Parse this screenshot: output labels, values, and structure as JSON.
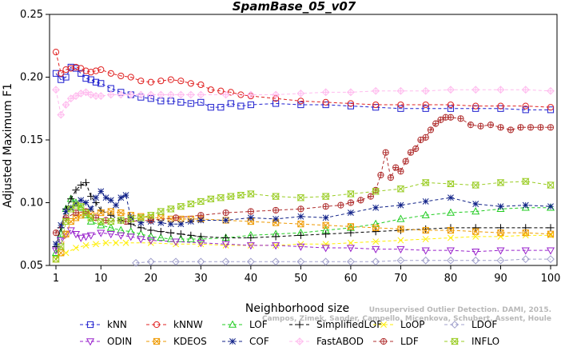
{
  "chart_data": {
    "type": "line",
    "title": "SpamBase_05_v07",
    "xlabel": "Neighborhood size",
    "ylabel": "Adjusted Maximum F1",
    "xlim": [
      1,
      100
    ],
    "ylim": [
      0.05,
      0.25
    ],
    "xticks": [
      "1",
      "10",
      "20",
      "30",
      "40",
      "50",
      "60",
      "70",
      "80",
      "90",
      "100"
    ],
    "yticks": [
      "0.05",
      "0.10",
      "0.15",
      "0.20",
      "0.25"
    ],
    "legend_position": "bottom",
    "credit_lines": [
      "Campos, Zimek, Sander, Campello, Micenkova, Schubert, Assent, Houle",
      "Unsupervised Outlier Detection. DAMI, 2015."
    ],
    "series": [
      {
        "name": "kNN",
        "color": "#1f1fcf",
        "marker": "square",
        "x": [
          1,
          2,
          3,
          4,
          5,
          6,
          7,
          8,
          9,
          10,
          12,
          14,
          16,
          18,
          20,
          22,
          24,
          26,
          28,
          30,
          32,
          34,
          36,
          38,
          40,
          45,
          50,
          55,
          60,
          65,
          70,
          75,
          80,
          85,
          90,
          95,
          100
        ],
        "y": [
          0.203,
          0.198,
          0.2,
          0.208,
          0.207,
          0.203,
          0.199,
          0.198,
          0.196,
          0.195,
          0.191,
          0.188,
          0.186,
          0.184,
          0.183,
          0.181,
          0.181,
          0.18,
          0.179,
          0.18,
          0.176,
          0.176,
          0.179,
          0.177,
          0.178,
          0.179,
          0.178,
          0.178,
          0.177,
          0.176,
          0.175,
          0.175,
          0.175,
          0.175,
          0.175,
          0.174,
          0.174
        ]
      },
      {
        "name": "kNNW",
        "color": "#e02020",
        "marker": "circle",
        "x": [
          1,
          2,
          3,
          4,
          5,
          6,
          7,
          8,
          9,
          10,
          12,
          14,
          16,
          18,
          20,
          22,
          24,
          26,
          28,
          30,
          32,
          34,
          36,
          38,
          40,
          45,
          50,
          55,
          60,
          65,
          70,
          75,
          80,
          85,
          90,
          95,
          100
        ],
        "y": [
          0.22,
          0.203,
          0.206,
          0.207,
          0.208,
          0.207,
          0.205,
          0.204,
          0.205,
          0.206,
          0.203,
          0.201,
          0.2,
          0.197,
          0.196,
          0.197,
          0.198,
          0.197,
          0.195,
          0.194,
          0.19,
          0.189,
          0.188,
          0.186,
          0.185,
          0.183,
          0.181,
          0.18,
          0.179,
          0.178,
          0.178,
          0.178,
          0.178,
          0.177,
          0.177,
          0.177,
          0.176
        ]
      },
      {
        "name": "LOF",
        "color": "#22cc22",
        "marker": "triangle-up",
        "x": [
          1,
          2,
          3,
          4,
          5,
          6,
          7,
          8,
          10,
          12,
          14,
          16,
          18,
          20,
          22,
          24,
          26,
          28,
          30,
          35,
          40,
          45,
          50,
          55,
          60,
          65,
          70,
          75,
          80,
          85,
          90,
          95,
          100
        ],
        "y": [
          0.06,
          0.075,
          0.095,
          0.103,
          0.1,
          0.096,
          0.09,
          0.085,
          0.082,
          0.08,
          0.078,
          0.077,
          0.075,
          0.073,
          0.072,
          0.071,
          0.071,
          0.071,
          0.071,
          0.072,
          0.074,
          0.075,
          0.076,
          0.078,
          0.08,
          0.083,
          0.087,
          0.09,
          0.092,
          0.093,
          0.095,
          0.096,
          0.096
        ]
      },
      {
        "name": "SimplifiedLOF",
        "color": "#000000",
        "marker": "plus",
        "x": [
          1,
          2,
          3,
          4,
          5,
          6,
          7,
          8,
          9,
          10,
          12,
          14,
          16,
          18,
          20,
          22,
          24,
          26,
          28,
          30,
          35,
          40,
          45,
          50,
          55,
          60,
          65,
          70,
          75,
          80,
          85,
          90,
          95,
          100
        ],
        "y": [
          0.065,
          0.08,
          0.095,
          0.103,
          0.11,
          0.114,
          0.116,
          0.105,
          0.1,
          0.094,
          0.09,
          0.086,
          0.083,
          0.08,
          0.078,
          0.077,
          0.076,
          0.075,
          0.074,
          0.073,
          0.072,
          0.072,
          0.073,
          0.074,
          0.075,
          0.076,
          0.077,
          0.078,
          0.079,
          0.08,
          0.08,
          0.08,
          0.08,
          0.08
        ]
      },
      {
        "name": "LoOP",
        "color": "#ffee00",
        "marker": "x",
        "x": [
          1,
          3,
          5,
          7,
          9,
          11,
          13,
          15,
          20,
          25,
          30,
          35,
          40,
          45,
          50,
          55,
          60,
          65,
          70,
          75,
          80,
          85,
          90,
          95,
          100
        ],
        "y": [
          0.055,
          0.06,
          0.064,
          0.066,
          0.067,
          0.068,
          0.068,
          0.068,
          0.068,
          0.067,
          0.067,
          0.066,
          0.066,
          0.066,
          0.067,
          0.067,
          0.068,
          0.069,
          0.07,
          0.071,
          0.072,
          0.073,
          0.073,
          0.074,
          0.074
        ]
      },
      {
        "name": "LDOF",
        "color": "#a0a0cc",
        "marker": "diamond",
        "x": [
          17,
          20,
          25,
          30,
          35,
          40,
          45,
          50,
          55,
          60,
          65,
          70,
          75,
          80,
          85,
          90,
          95,
          100
        ],
        "y": [
          0.052,
          0.053,
          0.053,
          0.053,
          0.053,
          0.053,
          0.053,
          0.053,
          0.053,
          0.053,
          0.053,
          0.054,
          0.054,
          0.054,
          0.054,
          0.054,
          0.055,
          0.055
        ]
      },
      {
        "name": "ODIN",
        "color": "#9922cc",
        "marker": "triangle-down",
        "x": [
          1,
          2,
          3,
          4,
          5,
          6,
          7,
          8,
          10,
          12,
          14,
          16,
          18,
          20,
          25,
          30,
          35,
          40,
          45,
          50,
          55,
          60,
          65,
          70,
          75,
          80,
          85,
          90,
          95,
          100
        ],
        "y": [
          0.062,
          0.07,
          0.075,
          0.078,
          0.075,
          0.072,
          0.073,
          0.074,
          0.076,
          0.075,
          0.074,
          0.073,
          0.071,
          0.07,
          0.069,
          0.068,
          0.067,
          0.066,
          0.066,
          0.065,
          0.064,
          0.064,
          0.063,
          0.063,
          0.062,
          0.062,
          0.061,
          0.062,
          0.062,
          0.062
        ]
      },
      {
        "name": "KDEOS",
        "color": "#ee9900",
        "marker": "square-x",
        "x": [
          1,
          2,
          3,
          4,
          5,
          6,
          7,
          8,
          10,
          12,
          14,
          16,
          18,
          20,
          22,
          24,
          26,
          28,
          30,
          35,
          40,
          45,
          50,
          55,
          60,
          65,
          70,
          75,
          80,
          85,
          90,
          95,
          100
        ],
        "y": [
          0.055,
          0.06,
          0.075,
          0.085,
          0.088,
          0.09,
          0.092,
          0.091,
          0.092,
          0.093,
          0.092,
          0.09,
          0.089,
          0.088,
          0.088,
          0.087,
          0.087,
          0.087,
          0.087,
          0.086,
          0.085,
          0.084,
          0.083,
          0.082,
          0.081,
          0.08,
          0.079,
          0.078,
          0.078,
          0.077,
          0.076,
          0.076,
          0.075
        ]
      },
      {
        "name": "COF",
        "color": "#112288",
        "marker": "asterisk",
        "x": [
          1,
          2,
          3,
          4,
          5,
          6,
          7,
          8,
          9,
          10,
          11,
          12,
          13,
          14,
          15,
          16,
          18,
          20,
          22,
          24,
          26,
          28,
          30,
          35,
          40,
          45,
          50,
          55,
          60,
          65,
          70,
          75,
          80,
          85,
          90,
          95,
          100
        ],
        "y": [
          0.067,
          0.082,
          0.093,
          0.096,
          0.099,
          0.102,
          0.1,
          0.095,
          0.104,
          0.109,
          0.104,
          0.102,
          0.098,
          0.104,
          0.106,
          0.088,
          0.084,
          0.085,
          0.084,
          0.083,
          0.083,
          0.085,
          0.086,
          0.086,
          0.088,
          0.087,
          0.089,
          0.088,
          0.092,
          0.096,
          0.098,
          0.101,
          0.104,
          0.099,
          0.097,
          0.098,
          0.097
        ]
      },
      {
        "name": "FastABOD",
        "color": "#ffbbee",
        "marker": "diamond-plus",
        "x": [
          1,
          2,
          3,
          4,
          5,
          6,
          7,
          8,
          9,
          10,
          12,
          14,
          16,
          18,
          20,
          22,
          24,
          26,
          28,
          30,
          35,
          40,
          45,
          50,
          55,
          60,
          65,
          70,
          75,
          80,
          85,
          90,
          95,
          100
        ],
        "y": [
          0.19,
          0.17,
          0.178,
          0.183,
          0.185,
          0.187,
          0.188,
          0.186,
          0.185,
          0.185,
          0.186,
          0.186,
          0.186,
          0.186,
          0.186,
          0.186,
          0.186,
          0.186,
          0.186,
          0.186,
          0.186,
          0.186,
          0.186,
          0.187,
          0.188,
          0.188,
          0.189,
          0.189,
          0.189,
          0.19,
          0.19,
          0.19,
          0.19,
          0.189
        ]
      },
      {
        "name": "LDF",
        "color": "#b03030",
        "marker": "circle-plus",
        "x": [
          1,
          3,
          5,
          7,
          9,
          11,
          15,
          20,
          25,
          30,
          35,
          40,
          45,
          50,
          55,
          58,
          60,
          62,
          64,
          65,
          66,
          67,
          68,
          69,
          70,
          71,
          72,
          73,
          74,
          75,
          76,
          77,
          78,
          79,
          80,
          82,
          84,
          86,
          88,
          90,
          92,
          94,
          96,
          98,
          100
        ],
        "y": [
          0.076,
          0.088,
          0.092,
          0.093,
          0.088,
          0.086,
          0.085,
          0.086,
          0.088,
          0.09,
          0.092,
          0.093,
          0.094,
          0.095,
          0.097,
          0.098,
          0.1,
          0.102,
          0.105,
          0.11,
          0.122,
          0.14,
          0.12,
          0.128,
          0.125,
          0.133,
          0.14,
          0.143,
          0.15,
          0.152,
          0.158,
          0.163,
          0.166,
          0.168,
          0.168,
          0.167,
          0.162,
          0.161,
          0.162,
          0.16,
          0.158,
          0.16,
          0.16,
          0.16,
          0.16
        ]
      },
      {
        "name": "INFLO",
        "color": "#99cc22",
        "marker": "hourglass",
        "x": [
          1,
          2,
          3,
          4,
          5,
          6,
          7,
          8,
          10,
          12,
          14,
          16,
          18,
          20,
          22,
          24,
          26,
          28,
          30,
          32,
          34,
          36,
          38,
          40,
          45,
          50,
          55,
          60,
          65,
          70,
          75,
          80,
          85,
          90,
          95,
          100
        ],
        "y": [
          0.055,
          0.065,
          0.085,
          0.095,
          0.098,
          0.097,
          0.092,
          0.088,
          0.085,
          0.085,
          0.086,
          0.087,
          0.088,
          0.09,
          0.093,
          0.095,
          0.097,
          0.099,
          0.101,
          0.103,
          0.104,
          0.105,
          0.106,
          0.107,
          0.105,
          0.104,
          0.105,
          0.107,
          0.109,
          0.111,
          0.116,
          0.115,
          0.114,
          0.116,
          0.117,
          0.114
        ]
      }
    ]
  }
}
